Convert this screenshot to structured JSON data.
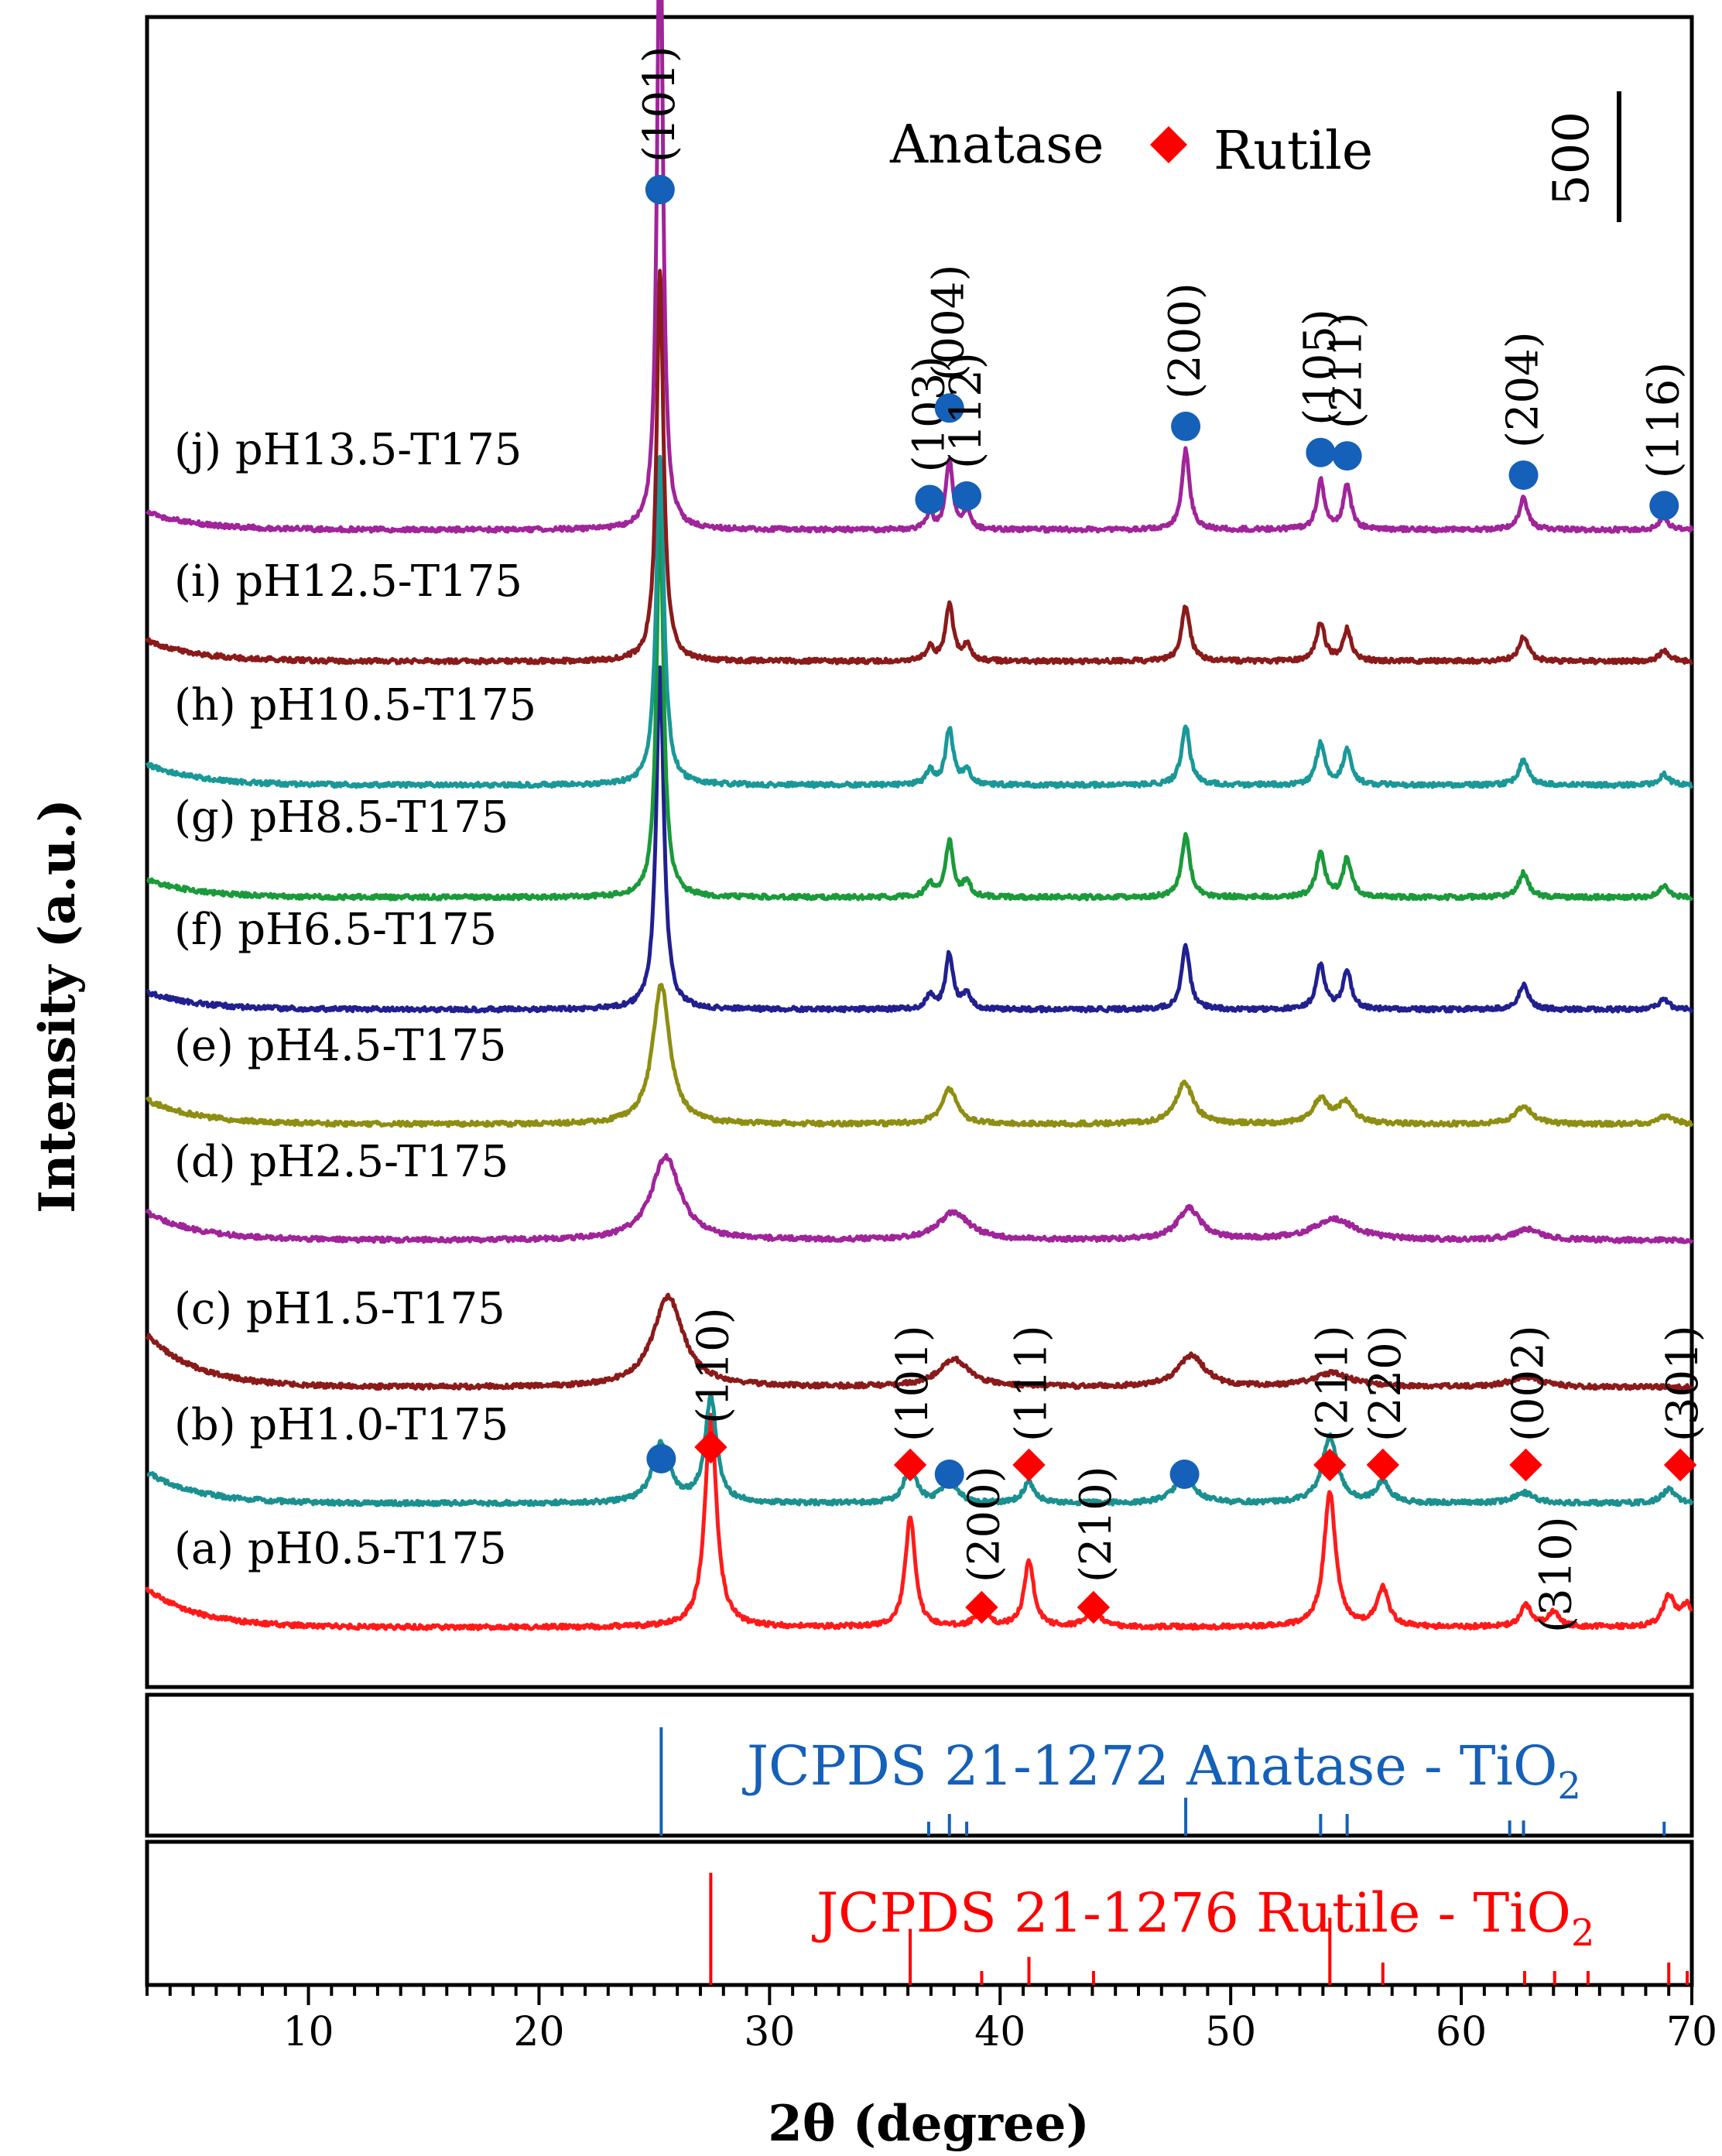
{
  "chart_data": {
    "type": "line",
    "title": "",
    "xlabel": "2θ (degree)",
    "ylabel": "Intensity (a.u.)",
    "xlim": [
      3,
      70
    ],
    "xticks": [
      10,
      20,
      30,
      40,
      50,
      60,
      70
    ],
    "x_minor_step": 1,
    "legend": {
      "anatase_label": "Anatase",
      "rutile_label": "Rutile",
      "placement": "top-center"
    },
    "scale_bar_label": "500",
    "scale_bar_value": 500,
    "colors": {
      "anatase_marker": "#1560b8",
      "rutile_marker": "#ff0000",
      "axes": "#000000"
    },
    "series": [
      {
        "id": "a",
        "name": "(a) pH0.5-T175",
        "color": "#ff1a1a",
        "offset": 0,
        "anatase": [],
        "rutile": [
          [
            27.45,
            305,
            0.3
          ],
          [
            36.1,
            160,
            0.25
          ],
          [
            39.2,
            25,
            0.3
          ],
          [
            41.25,
            95,
            0.25
          ],
          [
            44.05,
            30,
            0.3
          ],
          [
            54.3,
            195,
            0.3
          ],
          [
            56.6,
            55,
            0.3
          ],
          [
            62.8,
            30,
            0.3
          ],
          [
            64.0,
            20,
            0.3
          ],
          [
            69.0,
            45,
            0.3
          ],
          [
            69.8,
            30,
            0.3
          ]
        ],
        "background": {
          "left": 55,
          "tail": 8
        }
      },
      {
        "id": "b",
        "name": "(b) pH1.0-T175",
        "color": "#1a9090",
        "offset": 1,
        "anatase": [
          [
            25.3,
            85,
            0.45
          ],
          [
            37.8,
            30,
            0.4
          ],
          [
            48.0,
            40,
            0.5
          ],
          [
            62.7,
            15,
            0.5
          ]
        ],
        "rutile": [
          [
            27.45,
            150,
            0.3
          ],
          [
            36.1,
            55,
            0.3
          ],
          [
            41.25,
            30,
            0.3
          ],
          [
            54.3,
            95,
            0.4
          ],
          [
            56.6,
            30,
            0.35
          ],
          [
            69.0,
            20,
            0.35
          ]
        ],
        "background": {
          "left": 45,
          "tail": 8
        }
      },
      {
        "id": "c",
        "name": "(c) pH1.5-T175",
        "color": "#8b1a1a",
        "offset": 2,
        "anatase": [
          [
            25.6,
            130,
            0.8
          ],
          [
            38.0,
            40,
            0.8
          ],
          [
            48.3,
            45,
            0.7
          ],
          [
            54.4,
            20,
            1.0
          ],
          [
            62.8,
            15,
            0.8
          ]
        ],
        "rutile": [],
        "background": {
          "left": 75,
          "tail": 8
        }
      },
      {
        "id": "d",
        "name": "(d) pH2.5-T175",
        "color": "#a0249a",
        "offset": 3,
        "anatase": [
          [
            25.5,
            120,
            0.75
          ],
          [
            38.0,
            40,
            0.8
          ],
          [
            48.2,
            45,
            0.6
          ],
          [
            54.5,
            30,
            1.1
          ],
          [
            62.9,
            15,
            0.7
          ]
        ],
        "rutile": [],
        "background": {
          "left": 40,
          "tail": 8
        }
      },
      {
        "id": "e",
        "name": "(e) pH4.5-T175",
        "color": "#8e8e12",
        "offset": 4,
        "anatase": [
          [
            25.3,
            200,
            0.45
          ],
          [
            37.8,
            50,
            0.4
          ],
          [
            48.0,
            60,
            0.45
          ],
          [
            53.9,
            35,
            0.4
          ],
          [
            55.0,
            30,
            0.4
          ],
          [
            62.7,
            25,
            0.45
          ],
          [
            68.9,
            12,
            0.4
          ]
        ],
        "rutile": [],
        "background": {
          "left": 35,
          "tail": 8
        }
      },
      {
        "id": "f",
        "name": "(f) pH6.5-T175",
        "color": "#202090",
        "offset": 5,
        "anatase": [
          [
            25.25,
            490,
            0.2
          ],
          [
            36.95,
            20,
            0.2
          ],
          [
            37.8,
            80,
            0.2
          ],
          [
            38.55,
            22,
            0.2
          ],
          [
            48.05,
            90,
            0.22
          ],
          [
            53.9,
            65,
            0.22
          ],
          [
            55.05,
            55,
            0.22
          ],
          [
            62.7,
            35,
            0.25
          ],
          [
            68.8,
            15,
            0.25
          ]
        ],
        "rutile": [],
        "background": {
          "left": 25,
          "tail": 6
        }
      },
      {
        "id": "g",
        "name": "(g) pH8.5-T175",
        "color": "#1a9a3a",
        "offset": 6,
        "anatase": [
          [
            25.25,
            560,
            0.18
          ],
          [
            36.95,
            20,
            0.2
          ],
          [
            37.8,
            80,
            0.2
          ],
          [
            38.55,
            22,
            0.2
          ],
          [
            48.05,
            90,
            0.22
          ],
          [
            53.9,
            65,
            0.22
          ],
          [
            55.05,
            55,
            0.22
          ],
          [
            62.7,
            35,
            0.25
          ],
          [
            68.8,
            15,
            0.25
          ]
        ],
        "rutile": [],
        "background": {
          "left": 25,
          "tail": 6
        }
      },
      {
        "id": "h",
        "name": "(h) pH10.5-T175",
        "color": "#1a9898",
        "offset": 7,
        "anatase": [
          [
            25.25,
            470,
            0.2
          ],
          [
            36.95,
            20,
            0.2
          ],
          [
            37.8,
            80,
            0.2
          ],
          [
            38.55,
            22,
            0.2
          ],
          [
            48.05,
            85,
            0.22
          ],
          [
            53.9,
            60,
            0.22
          ],
          [
            55.05,
            50,
            0.22
          ],
          [
            62.7,
            35,
            0.25
          ],
          [
            68.8,
            15,
            0.25
          ]
        ],
        "rutile": [],
        "background": {
          "left": 30,
          "tail": 6
        }
      },
      {
        "id": "i",
        "name": "(i) pH12.5-T175",
        "color": "#8b1a1a",
        "offset": 8,
        "anatase": [
          [
            25.25,
            560,
            0.18
          ],
          [
            36.95,
            20,
            0.2
          ],
          [
            37.8,
            80,
            0.2
          ],
          [
            38.55,
            22,
            0.2
          ],
          [
            48.05,
            80,
            0.22
          ],
          [
            53.9,
            55,
            0.22
          ],
          [
            55.05,
            45,
            0.22
          ],
          [
            62.7,
            35,
            0.25
          ],
          [
            68.8,
            15,
            0.25
          ]
        ],
        "rutile": [],
        "background": {
          "left": 30,
          "tail": 6
        }
      },
      {
        "id": "j",
        "name": "(j) pH13.5-T175",
        "color": "#a0249a",
        "offset": 9,
        "anatase": [
          [
            25.25,
            940,
            0.15
          ],
          [
            36.95,
            22,
            0.18
          ],
          [
            37.8,
            100,
            0.18
          ],
          [
            38.55,
            26,
            0.18
          ],
          [
            48.05,
            115,
            0.2
          ],
          [
            53.9,
            70,
            0.2
          ],
          [
            55.05,
            65,
            0.2
          ],
          [
            62.7,
            45,
            0.22
          ],
          [
            68.8,
            18,
            0.22
          ]
        ],
        "rutile": [],
        "background": {
          "left": 25,
          "tail": 6
        }
      }
    ],
    "anatase_annotations": [
      {
        "x": 25.25,
        "label": "(101)",
        "series": "j"
      },
      {
        "x": 36.95,
        "label": "(103)",
        "series": "j"
      },
      {
        "x": 37.8,
        "label": "(004)",
        "series": "j"
      },
      {
        "x": 38.55,
        "label": "(112)",
        "series": "j"
      },
      {
        "x": 48.05,
        "label": "(200)",
        "series": "j"
      },
      {
        "x": 53.9,
        "label": "(105)",
        "series": "j"
      },
      {
        "x": 55.05,
        "label": "(211)",
        "series": "j"
      },
      {
        "x": 62.7,
        "label": "(204)",
        "series": "j"
      },
      {
        "x": 68.8,
        "label": "(116)",
        "series": "j"
      }
    ],
    "series_b_markers": [
      {
        "phase": "anatase",
        "x": 25.3
      },
      {
        "phase": "rutile",
        "x": 27.45,
        "label": "(110)"
      },
      {
        "phase": "rutile",
        "x": 36.1,
        "label": "(101)"
      },
      {
        "phase": "anatase",
        "x": 37.8
      },
      {
        "phase": "rutile",
        "x": 41.25,
        "label": "(111)"
      },
      {
        "phase": "anatase",
        "x": 48.0
      },
      {
        "phase": "rutile",
        "x": 54.3,
        "label": "(211)"
      },
      {
        "phase": "rutile",
        "x": 56.6,
        "label": "(220)"
      },
      {
        "phase": "rutile",
        "x": 62.8,
        "label": "(002)"
      },
      {
        "phase": "rutile",
        "x": 69.5,
        "label": "(301)"
      }
    ],
    "series_a_markers": [
      {
        "phase": "rutile",
        "x": 39.2,
        "label": "(200)"
      },
      {
        "phase": "rutile",
        "x": 44.05,
        "label": "(210)"
      }
    ],
    "series_a_text_label": {
      "x": 64.0,
      "label": "(310)"
    },
    "reference_panels": [
      {
        "id": "anatase-ref",
        "label": "JCPDS 21-1272 Anatase - TiO",
        "subscript": "2",
        "color": "#1560b8",
        "lines": [
          [
            25.3,
            100
          ],
          [
            36.9,
            10
          ],
          [
            37.8,
            20
          ],
          [
            38.55,
            10
          ],
          [
            48.05,
            35
          ],
          [
            53.9,
            20
          ],
          [
            55.05,
            20
          ],
          [
            62.1,
            14
          ],
          [
            62.7,
            14
          ],
          [
            68.8,
            6
          ]
        ]
      },
      {
        "id": "rutile-ref",
        "label": "JCPDS 21-1276 Rutile - TiO",
        "subscript": "2",
        "color": "#ff0000",
        "lines": [
          [
            27.45,
            100
          ],
          [
            36.1,
            50
          ],
          [
            39.2,
            8
          ],
          [
            41.25,
            25
          ],
          [
            44.05,
            10
          ],
          [
            54.3,
            60
          ],
          [
            56.6,
            20
          ],
          [
            62.75,
            10
          ],
          [
            64.05,
            10
          ],
          [
            65.5,
            2
          ],
          [
            69.0,
            20
          ],
          [
            69.8,
            10
          ]
        ]
      }
    ]
  }
}
